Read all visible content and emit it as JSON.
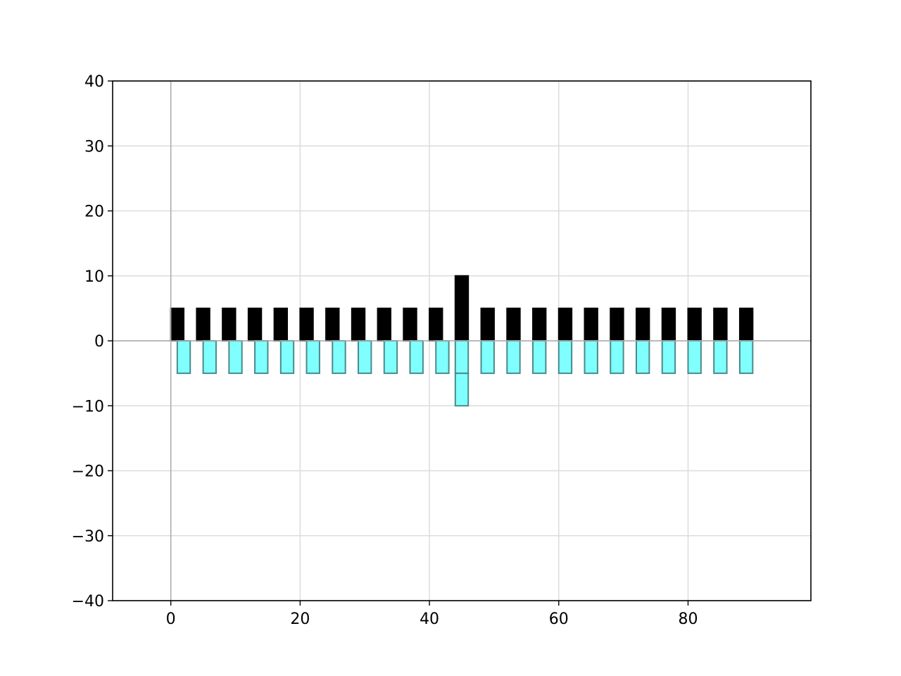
{
  "chart_data": {
    "type": "bar",
    "title": "",
    "xlabel": "",
    "ylabel": "",
    "xlim": [
      -9,
      99
    ],
    "ylim": [
      -40,
      40
    ],
    "grid": true,
    "legend": "none",
    "x_ticks": [
      0,
      20,
      40,
      60,
      80
    ],
    "y_ticks": [
      -40,
      -30,
      -20,
      -10,
      0,
      10,
      20,
      30,
      40
    ],
    "x_tick_labels": [
      "0",
      "20",
      "40",
      "60",
      "80"
    ],
    "y_tick_labels": [
      "−40",
      "−30",
      "−20",
      "−10",
      "0",
      "10",
      "20",
      "30",
      "40"
    ],
    "series": [
      {
        "color": "#000000",
        "edge_color": "#000000",
        "bar_width": 2,
        "x": [
          1,
          5,
          9,
          13,
          17,
          21,
          25,
          29,
          33,
          37,
          41,
          45,
          49,
          53,
          57,
          61,
          65,
          69,
          73,
          77,
          81,
          85,
          89
        ],
        "bottom": 0,
        "values": [
          5,
          5,
          5,
          5,
          5,
          5,
          5,
          5,
          5,
          5,
          5,
          10,
          5,
          5,
          5,
          5,
          5,
          5,
          5,
          5,
          5,
          5,
          5
        ]
      },
      {
        "color": "#80ffff",
        "edge_color": "#4a8a8a",
        "bar_width": 2,
        "x": [
          2,
          6,
          10,
          14,
          18,
          22,
          26,
          30,
          34,
          38,
          42,
          45,
          49,
          53,
          57,
          61,
          65,
          69,
          73,
          77,
          81,
          85,
          89
        ],
        "bottom": 0,
        "values": [
          -5,
          -5,
          -5,
          -5,
          -5,
          -5,
          -5,
          -5,
          -5,
          -5,
          -5,
          -5,
          -5,
          -5,
          -5,
          -5,
          -5,
          -5,
          -5,
          -5,
          -5,
          -5,
          -5
        ]
      },
      {
        "color": "#80ffff",
        "edge_color": "#4a8a8a",
        "bar_width": 2,
        "x": [
          45
        ],
        "bottom": -5,
        "values": [
          -5
        ]
      }
    ]
  }
}
